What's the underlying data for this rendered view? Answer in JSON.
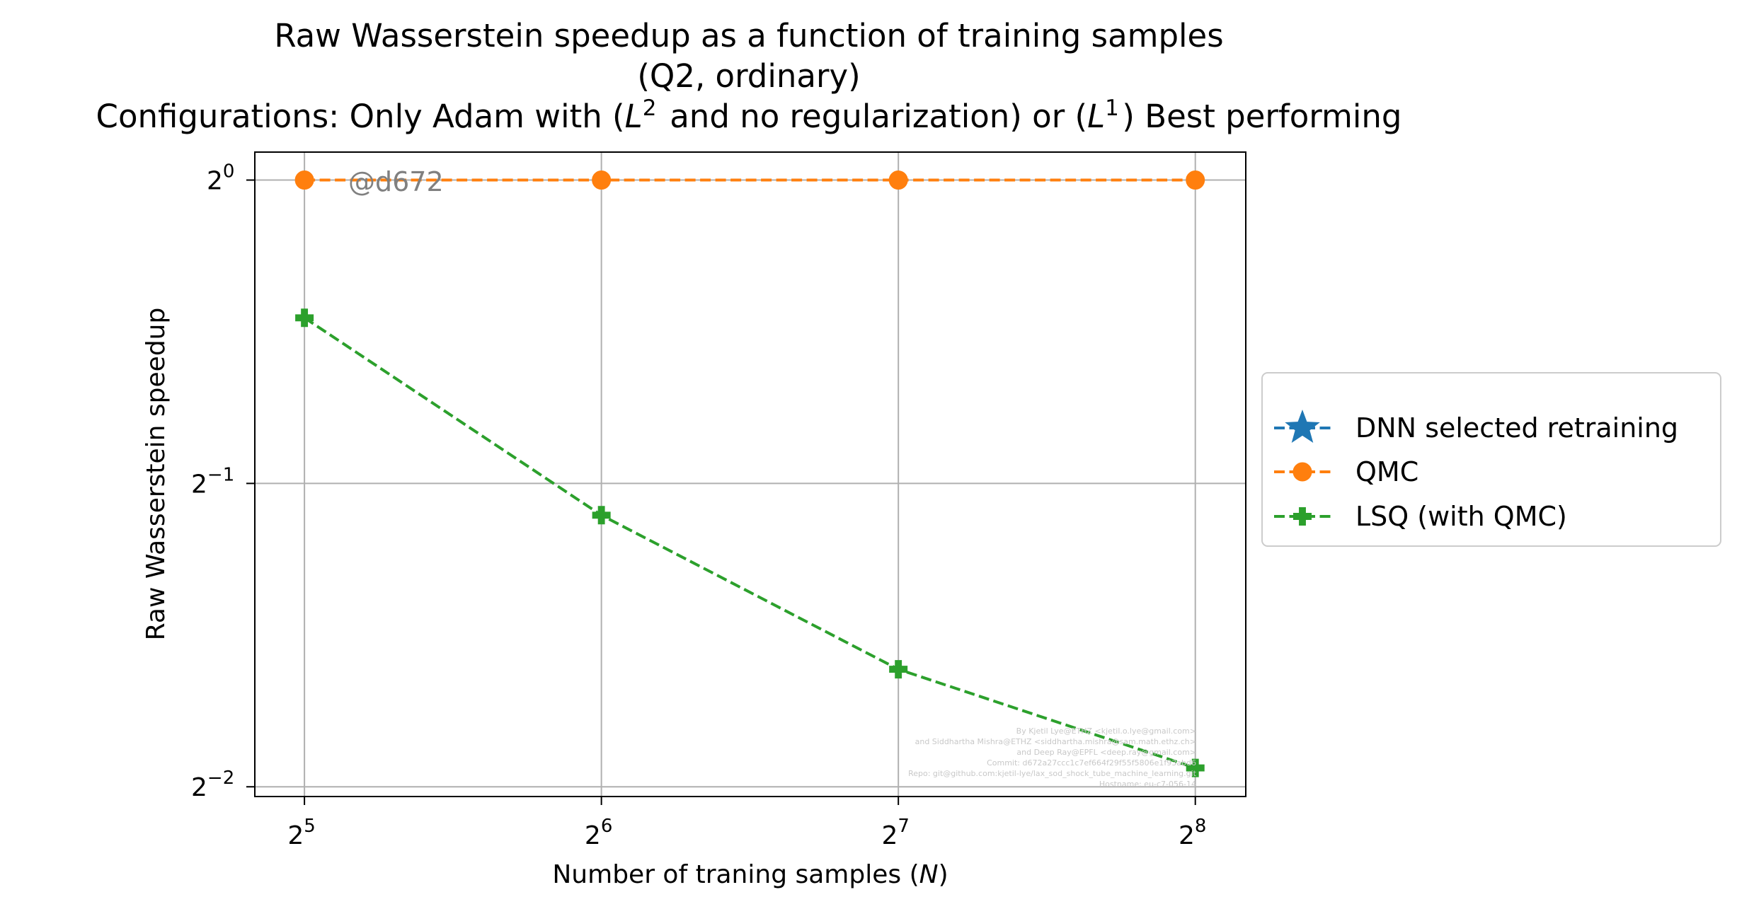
{
  "chart_data": {
    "type": "line",
    "title_lines": [
      "Raw Wasserstein speedup as a function of training samples",
      "(Q2, ordinary)",
      "Configurations: Only Adam with (L2 and no regularization) or (L1) Best performing"
    ],
    "xlabel": "Number of traning samples (N)",
    "ylabel": "Raw Wasserstein speedup",
    "x_scale": "log2",
    "y_scale": "log2",
    "x_ticks": [
      32,
      64,
      128,
      256
    ],
    "x_tick_exponents": [
      "5",
      "6",
      "7",
      "8"
    ],
    "y_ticks": [
      0.25,
      0.5,
      1
    ],
    "y_tick_exponents": [
      "−2",
      "−1",
      "0"
    ],
    "tick_base": "2",
    "xlim": [
      28.5,
      288
    ],
    "ylim": [
      0.2445,
      1.066
    ],
    "grid": true,
    "legend_position": "outside right",
    "series": [
      {
        "name": "DNN selected retraining",
        "color": "#1f77b4",
        "linestyle": "dashed",
        "marker": "star",
        "x": [],
        "y": []
      },
      {
        "name": "QMC",
        "color": "#ff7f0e",
        "linestyle": "dashed",
        "marker": "circle",
        "x": [
          32,
          64,
          128,
          256
        ],
        "y": [
          1.0,
          1.0,
          1.0,
          1.0
        ]
      },
      {
        "name": "LSQ (with QMC)",
        "color": "#2ca02c",
        "linestyle": "dashed",
        "marker": "plus",
        "x": [
          32,
          64,
          128,
          256
        ],
        "y": [
          0.73,
          0.465,
          0.327,
          0.261
        ]
      }
    ],
    "watermark": "@d672",
    "credits": [
      "By Kjetil Lye@ETHZ <kjetil.o.lye@gmail.com>",
      "and Siddhartha Mishra@ETHZ <siddhartha.mishra@sam.math.ethz.ch>",
      "and Deep Ray@EPFL <deep.ray@gmail.com>",
      "Commit: d672a27ccc1c7ef664f29f55f5806e1f93abd6",
      "Repo: git@github.com:kjetil-lye/lax_sod_shock_tube_machine_learning.git",
      "Hostname: eu-c7-056-14"
    ]
  }
}
